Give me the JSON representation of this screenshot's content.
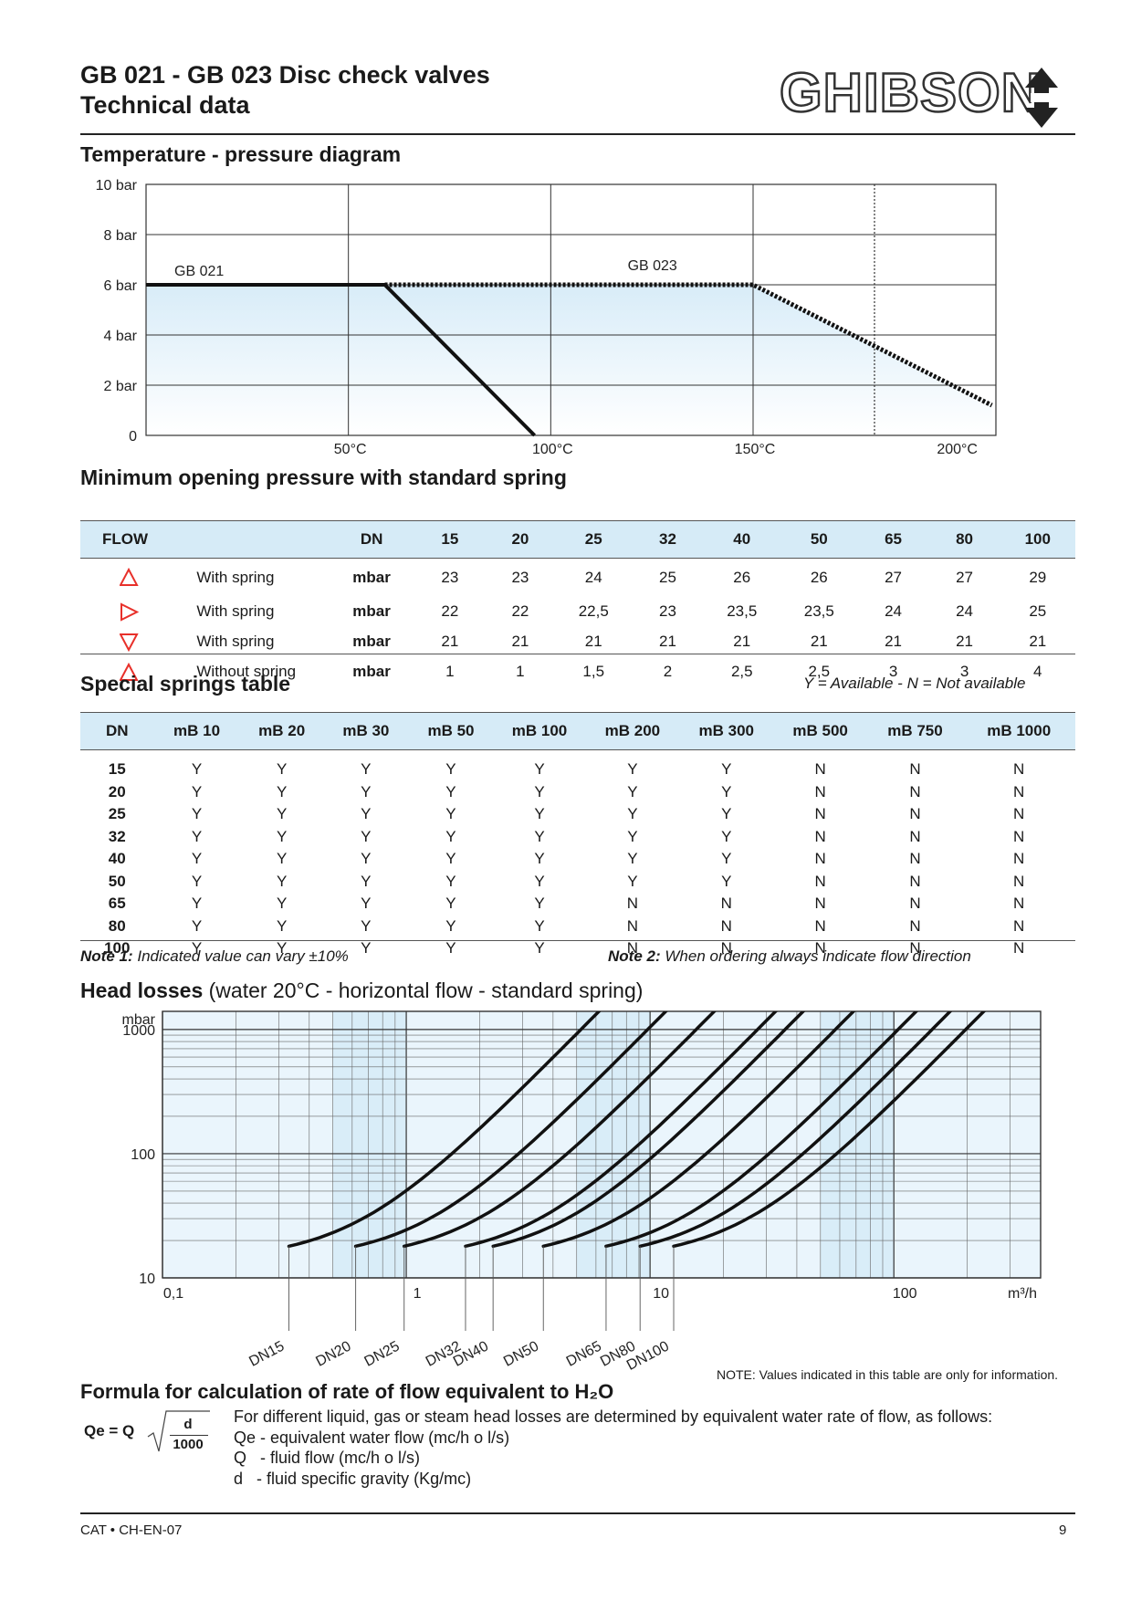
{
  "header": {
    "title_line1": "GB 021 - GB 023 Disc check valves",
    "title_line2": "Technical data",
    "logo_text": "GHIBSON"
  },
  "temp_pressure": {
    "section_title": "Temperature - pressure diagram",
    "chart_data": {
      "type": "line",
      "y_ticks": [
        "10 bar",
        "8 bar",
        "6 bar",
        "4 bar",
        "2 bar",
        "0"
      ],
      "x_ticks": [
        "50°C",
        "100°C",
        "150°C",
        "200°C"
      ],
      "series": [
        {
          "name": "GB 021",
          "x": [
            0,
            59,
            96
          ],
          "y": [
            6,
            6,
            0
          ]
        },
        {
          "name": "GB 023",
          "x": [
            59,
            150,
            209
          ],
          "y": [
            6,
            6,
            1.2
          ]
        }
      ],
      "xlim": [
        0,
        210
      ],
      "ylim": [
        0,
        10
      ]
    }
  },
  "min_opening": {
    "section_title": "Minimum opening pressure with standard spring",
    "headers": [
      "FLOW",
      "",
      "DN",
      "15",
      "20",
      "25",
      "32",
      "40",
      "50",
      "65",
      "80",
      "100"
    ],
    "rows": [
      {
        "flow_icon": "triangle-up-icon",
        "label": "With spring",
        "unit": "mbar",
        "values": [
          "23",
          "23",
          "24",
          "25",
          "26",
          "26",
          "27",
          "27",
          "29"
        ]
      },
      {
        "flow_icon": "triangle-right-icon",
        "label": "With spring",
        "unit": "mbar",
        "values": [
          "22",
          "22",
          "22,5",
          "23",
          "23,5",
          "23,5",
          "24",
          "24",
          "25"
        ]
      },
      {
        "flow_icon": "triangle-down-icon",
        "label": "With spring",
        "unit": "mbar",
        "values": [
          "21",
          "21",
          "21",
          "21",
          "21",
          "21",
          "21",
          "21",
          "21"
        ]
      },
      {
        "flow_icon": "triangle-up-icon",
        "label": "Without spring",
        "unit": "mbar",
        "values": [
          "1",
          "1",
          "1,5",
          "2",
          "2,5",
          "2,5",
          "3",
          "3",
          "4"
        ]
      }
    ],
    "icon_color": "#e8302a"
  },
  "special_springs": {
    "section_title": "Special springs table",
    "legend": "Y = Available - N = Not available",
    "headers": [
      "DN",
      "mB 10",
      "mB 20",
      "mB 30",
      "mB 50",
      "mB 100",
      "mB 200",
      "mB 300",
      "mB 500",
      "mB 750",
      "mB 1000"
    ],
    "rows": [
      [
        "15",
        "Y",
        "Y",
        "Y",
        "Y",
        "Y",
        "Y",
        "Y",
        "N",
        "N",
        "N"
      ],
      [
        "20",
        "Y",
        "Y",
        "Y",
        "Y",
        "Y",
        "Y",
        "Y",
        "N",
        "N",
        "N"
      ],
      [
        "25",
        "Y",
        "Y",
        "Y",
        "Y",
        "Y",
        "Y",
        "Y",
        "N",
        "N",
        "N"
      ],
      [
        "32",
        "Y",
        "Y",
        "Y",
        "Y",
        "Y",
        "Y",
        "Y",
        "N",
        "N",
        "N"
      ],
      [
        "40",
        "Y",
        "Y",
        "Y",
        "Y",
        "Y",
        "Y",
        "Y",
        "N",
        "N",
        "N"
      ],
      [
        "50",
        "Y",
        "Y",
        "Y",
        "Y",
        "Y",
        "Y",
        "Y",
        "N",
        "N",
        "N"
      ],
      [
        "65",
        "Y",
        "Y",
        "Y",
        "Y",
        "Y",
        "N",
        "N",
        "N",
        "N",
        "N"
      ],
      [
        "80",
        "Y",
        "Y",
        "Y",
        "Y",
        "Y",
        "N",
        "N",
        "N",
        "N",
        "N"
      ],
      [
        "100",
        "Y",
        "Y",
        "Y",
        "Y",
        "Y",
        "N",
        "N",
        "N",
        "N",
        "N"
      ]
    ],
    "note1_label": "Note 1:",
    "note1_text": "Indicated value can vary ±10%",
    "note2_label": "Note 2:",
    "note2_text": "When ordering always indicate flow direction"
  },
  "head_losses": {
    "section_title_bold": "Head losses",
    "section_title_rest": "(water 20°C - horizontal flow - standard spring)",
    "chart_data": {
      "type": "line",
      "y_unit": "mbar",
      "y_ticks": [
        "1000",
        "100",
        "10"
      ],
      "x_ticks": [
        "0,1",
        "1",
        "10",
        "100"
      ],
      "x_unit": "m³/h",
      "log_x": true,
      "log_y": true,
      "series": [
        {
          "name": "DN15",
          "start_x": 0.33,
          "start_y": 18
        },
        {
          "name": "DN20",
          "start_x": 0.62,
          "start_y": 18
        },
        {
          "name": "DN25",
          "start_x": 0.98,
          "start_y": 18
        },
        {
          "name": "DN32",
          "start_x": 1.75,
          "start_y": 18
        },
        {
          "name": "DN40",
          "start_x": 2.27,
          "start_y": 18
        },
        {
          "name": "DN50",
          "start_x": 3.65,
          "start_y": 18
        },
        {
          "name": "DN65",
          "start_x": 6.6,
          "start_y": 18
        },
        {
          "name": "DN80",
          "start_x": 9.1,
          "start_y": 18
        },
        {
          "name": "DN100",
          "start_x": 12.5,
          "start_y": 18
        }
      ],
      "xlim": [
        0.1,
        400
      ],
      "ylim": [
        10,
        1400
      ]
    },
    "note": "NOTE: Values  indicated in this table are only for information."
  },
  "formula": {
    "section_title": "Formula for calculation of rate of flow equivalent to H₂O",
    "lhs": "Qe = Q",
    "numerator": "d",
    "denominator": "1000",
    "intro": "For different liquid, gas or steam head losses are determined by equivalent water rate of flow, as follows:",
    "lines": [
      "Qe - equivalent water flow (mc/h o l/s)",
      "Q   - fluid flow (mc/h o l/s)",
      "d   - fluid specific gravity (Kg/mc)"
    ]
  },
  "footer": {
    "left": "CAT • CH-EN-07",
    "page": "9"
  }
}
